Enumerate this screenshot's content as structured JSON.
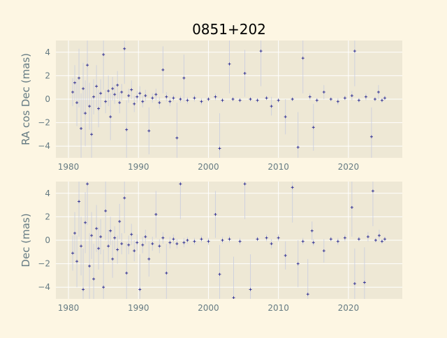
{
  "chart_data": [
    {
      "type": "scatter",
      "title": "0851+202",
      "xlabel": "",
      "ylabel": "RA cos Dec (mas)",
      "xlim": [
        1978.2,
        2027.7
      ],
      "ylim": [
        -5,
        5
      ],
      "xticks": [
        1980,
        1990,
        2000,
        2010,
        2020
      ],
      "yticks": [
        -4,
        -2,
        0,
        2,
        4
      ],
      "grid": true,
      "marker": "+",
      "error_bars": true,
      "colors": {
        "marker": "#000080",
        "errorbar": "#c8cce0",
        "axes_bg": "#eee8d5",
        "figure_bg": "#fdf6e3",
        "grid": "#ffffff",
        "text": "#657b83"
      },
      "points": [
        [
          1980.6,
          0.6,
          1.2
        ],
        [
          1980.9,
          1.4,
          1.5
        ],
        [
          1981.2,
          -0.3,
          2.0
        ],
        [
          1981.5,
          1.8,
          2.5
        ],
        [
          1981.8,
          -2.5,
          3.0
        ],
        [
          1982.1,
          0.9,
          2.2
        ],
        [
          1982.4,
          -1.2,
          2.8
        ],
        [
          1982.7,
          2.9,
          3.5
        ],
        [
          1983.0,
          -0.6,
          2.0
        ],
        [
          1983.3,
          -3.0,
          3.2
        ],
        [
          1983.6,
          0.2,
          1.5
        ],
        [
          1984.0,
          1.1,
          1.8
        ],
        [
          1984.3,
          -0.8,
          1.6
        ],
        [
          1984.6,
          0.5,
          1.2
        ],
        [
          1985.0,
          3.8,
          3.0
        ],
        [
          1985.3,
          -0.2,
          1.0
        ],
        [
          1985.7,
          0.7,
          1.3
        ],
        [
          1986.0,
          -1.5,
          2.0
        ],
        [
          1986.3,
          0.9,
          1.0
        ],
        [
          1986.6,
          0.4,
          0.8
        ],
        [
          1987.0,
          1.2,
          1.2
        ],
        [
          1987.3,
          -0.3,
          0.9
        ],
        [
          1987.6,
          0.6,
          0.7
        ],
        [
          1988.0,
          4.3,
          3.0
        ],
        [
          1988.3,
          -2.6,
          2.5
        ],
        [
          1988.6,
          0.3,
          0.6
        ],
        [
          1989.0,
          0.8,
          0.8
        ],
        [
          1989.4,
          -0.4,
          0.7
        ],
        [
          1989.8,
          0.2,
          0.5
        ],
        [
          1990.2,
          0.5,
          0.6
        ],
        [
          1990.6,
          -0.2,
          0.5
        ],
        [
          1991.0,
          0.3,
          0.5
        ],
        [
          1991.5,
          -2.7,
          2.0
        ],
        [
          1992.0,
          0.1,
          0.4
        ],
        [
          1992.5,
          0.4,
          0.5
        ],
        [
          1993.0,
          -0.3,
          0.5
        ],
        [
          1993.5,
          2.5,
          2.0
        ],
        [
          1994.0,
          0.2,
          0.4
        ],
        [
          1994.5,
          -0.2,
          0.4
        ],
        [
          1995.0,
          0.1,
          0.3
        ],
        [
          1995.5,
          -3.3,
          3.0
        ],
        [
          1996.0,
          0.0,
          0.3
        ],
        [
          1996.5,
          1.8,
          2.0
        ],
        [
          1997.0,
          -0.1,
          0.3
        ],
        [
          1998.0,
          0.1,
          0.3
        ],
        [
          1999.0,
          -0.2,
          0.3
        ],
        [
          2000.0,
          0.0,
          0.2
        ],
        [
          2001.0,
          0.2,
          0.3
        ],
        [
          2001.6,
          -4.2,
          3.0
        ],
        [
          2002.0,
          -0.1,
          0.2
        ],
        [
          2003.0,
          3.0,
          2.5
        ],
        [
          2003.5,
          0.0,
          0.2
        ],
        [
          2004.5,
          -0.1,
          0.2
        ],
        [
          2005.2,
          2.2,
          2.0
        ],
        [
          2006.0,
          0.0,
          0.2
        ],
        [
          2007.0,
          -0.1,
          0.2
        ],
        [
          2007.5,
          4.1,
          3.0
        ],
        [
          2008.3,
          0.1,
          0.2
        ],
        [
          2009.0,
          -0.6,
          0.8
        ],
        [
          2010.0,
          -0.1,
          0.2
        ],
        [
          2011.0,
          -1.5,
          1.5
        ],
        [
          2012.0,
          0.0,
          0.2
        ],
        [
          2012.8,
          -4.1,
          3.0
        ],
        [
          2013.5,
          3.5,
          3.0
        ],
        [
          2014.5,
          0.2,
          0.3
        ],
        [
          2015.0,
          -2.4,
          2.0
        ],
        [
          2015.5,
          -0.1,
          0.2
        ],
        [
          2016.5,
          0.6,
          0.6
        ],
        [
          2017.5,
          0.0,
          0.2
        ],
        [
          2018.5,
          -0.2,
          0.3
        ],
        [
          2019.5,
          0.1,
          0.2
        ],
        [
          2020.5,
          0.3,
          0.4
        ],
        [
          2020.9,
          4.1,
          3.0
        ],
        [
          2021.5,
          -0.1,
          0.2
        ],
        [
          2022.5,
          0.2,
          0.3
        ],
        [
          2023.3,
          -3.2,
          2.5
        ],
        [
          2023.8,
          0.0,
          0.2
        ],
        [
          2024.3,
          0.6,
          0.6
        ],
        [
          2024.8,
          -0.1,
          0.2
        ],
        [
          2025.2,
          0.1,
          0.2
        ]
      ]
    },
    {
      "type": "scatter",
      "title": "",
      "xlabel": "",
      "ylabel": "Dec (mas)",
      "xlim": [
        1978.2,
        2027.7
      ],
      "ylim": [
        -5,
        5
      ],
      "xticks": [
        1980,
        1990,
        2000,
        2010,
        2020
      ],
      "yticks": [
        -4,
        -2,
        0,
        2,
        4
      ],
      "grid": true,
      "marker": "+",
      "error_bars": true,
      "points": [
        [
          1980.6,
          -1.1,
          1.5
        ],
        [
          1980.9,
          0.6,
          1.8
        ],
        [
          1981.2,
          -1.8,
          2.2
        ],
        [
          1981.5,
          3.3,
          3.0
        ],
        [
          1981.8,
          -0.5,
          2.5
        ],
        [
          1982.1,
          -4.2,
          3.5
        ],
        [
          1982.4,
          1.5,
          2.6
        ],
        [
          1982.7,
          4.8,
          3.5
        ],
        [
          1983.0,
          -2.2,
          2.8
        ],
        [
          1983.3,
          0.4,
          2.0
        ],
        [
          1983.6,
          -3.3,
          3.0
        ],
        [
          1984.0,
          1.0,
          2.0
        ],
        [
          1984.3,
          -0.7,
          1.8
        ],
        [
          1984.6,
          0.3,
          1.5
        ],
        [
          1985.0,
          -4.0,
          3.2
        ],
        [
          1985.3,
          2.5,
          2.5
        ],
        [
          1985.7,
          -0.5,
          1.4
        ],
        [
          1986.0,
          0.8,
          1.2
        ],
        [
          1986.3,
          -1.6,
          1.6
        ],
        [
          1986.6,
          0.2,
          1.0
        ],
        [
          1987.0,
          -0.8,
          1.2
        ],
        [
          1987.3,
          1.6,
          1.5
        ],
        [
          1987.6,
          -0.3,
          0.9
        ],
        [
          1988.0,
          3.6,
          3.0
        ],
        [
          1988.3,
          -2.8,
          2.6
        ],
        [
          1988.6,
          -0.4,
          0.8
        ],
        [
          1989.0,
          0.5,
          0.9
        ],
        [
          1989.4,
          -0.9,
          0.9
        ],
        [
          1989.8,
          -0.2,
          0.7
        ],
        [
          1990.2,
          -4.2,
          3.0
        ],
        [
          1990.6,
          -0.4,
          0.7
        ],
        [
          1991.0,
          0.3,
          0.6
        ],
        [
          1991.5,
          -1.6,
          1.5
        ],
        [
          1992.0,
          -0.3,
          0.6
        ],
        [
          1992.5,
          2.2,
          2.0
        ],
        [
          1993.0,
          -0.5,
          0.6
        ],
        [
          1993.5,
          0.2,
          0.5
        ],
        [
          1994.0,
          -2.8,
          2.5
        ],
        [
          1994.5,
          -0.2,
          0.5
        ],
        [
          1995.0,
          0.1,
          0.4
        ],
        [
          1995.5,
          -0.3,
          0.4
        ],
        [
          1996.0,
          4.8,
          3.0
        ],
        [
          1996.5,
          -0.2,
          0.4
        ],
        [
          1997.0,
          0.0,
          0.3
        ],
        [
          1998.0,
          -0.1,
          0.3
        ],
        [
          1999.0,
          0.1,
          0.3
        ],
        [
          2000.0,
          -0.1,
          0.3
        ],
        [
          2001.0,
          2.2,
          2.0
        ],
        [
          2001.6,
          -2.9,
          2.5
        ],
        [
          2002.0,
          0.0,
          0.3
        ],
        [
          2003.0,
          0.1,
          0.3
        ],
        [
          2003.6,
          -4.9,
          3.5
        ],
        [
          2004.5,
          -0.1,
          0.3
        ],
        [
          2005.2,
          4.8,
          3.0
        ],
        [
          2006.0,
          -4.2,
          3.0
        ],
        [
          2007.0,
          0.1,
          0.2
        ],
        [
          2008.3,
          0.2,
          0.3
        ],
        [
          2009.0,
          -0.3,
          0.4
        ],
        [
          2010.0,
          0.2,
          0.3
        ],
        [
          2011.0,
          -1.3,
          1.2
        ],
        [
          2012.0,
          4.5,
          3.0
        ],
        [
          2012.8,
          -2.0,
          2.0
        ],
        [
          2013.5,
          -0.1,
          0.3
        ],
        [
          2014.2,
          -4.6,
          3.0
        ],
        [
          2014.8,
          0.8,
          0.8
        ],
        [
          2015.0,
          -0.2,
          0.3
        ],
        [
          2016.5,
          -0.9,
          1.0
        ],
        [
          2017.5,
          0.1,
          0.2
        ],
        [
          2018.5,
          -0.1,
          0.3
        ],
        [
          2019.5,
          0.2,
          0.3
        ],
        [
          2020.5,
          2.8,
          2.5
        ],
        [
          2020.9,
          -3.7,
          3.0
        ],
        [
          2021.5,
          0.1,
          0.2
        ],
        [
          2022.3,
          -3.6,
          3.0
        ],
        [
          2022.8,
          0.3,
          0.4
        ],
        [
          2023.5,
          4.2,
          3.0
        ],
        [
          2023.9,
          0.0,
          0.2
        ],
        [
          2024.4,
          0.4,
          0.5
        ],
        [
          2024.8,
          -0.1,
          0.2
        ],
        [
          2025.2,
          0.1,
          0.2
        ]
      ]
    }
  ]
}
